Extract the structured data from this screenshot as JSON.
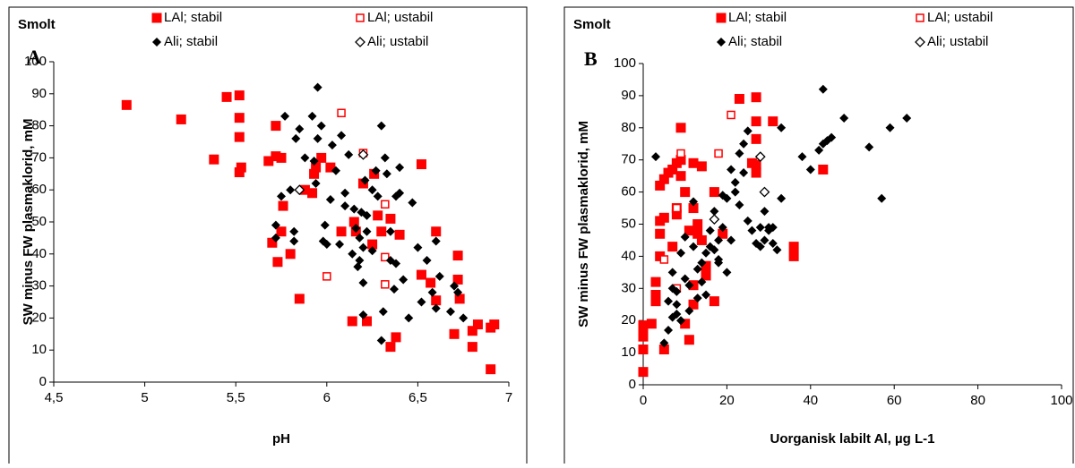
{
  "chart_data": [
    {
      "type": "scatter",
      "annotations": [
        "Smolt",
        "A"
      ],
      "xlabel": "pH",
      "ylabel": "SW minus FW plasmaklorid, mM",
      "xlim": [
        4.5,
        7
      ],
      "ylim": [
        0,
        100
      ],
      "xticks": [
        {
          "value": 4.5,
          "label": "4,5"
        },
        5,
        {
          "value": 5.5,
          "label": "5,5"
        },
        6,
        {
          "value": 6.5,
          "label": "6,5"
        },
        7
      ],
      "yticks": [
        0,
        10,
        20,
        30,
        40,
        50,
        60,
        70,
        80,
        90,
        100
      ],
      "series": [
        {
          "name": "LAl; stabil",
          "color": "#ff0000",
          "marker": "square",
          "x": [
            4.9,
            5.2,
            5.38,
            5.45,
            5.52,
            5.52,
            5.52,
            5.53,
            5.52,
            5.68,
            5.72,
            5.72,
            5.75,
            5.7,
            5.73,
            5.75,
            5.76,
            5.8,
            5.85,
            5.88,
            5.92,
            5.93,
            5.94,
            5.97,
            6.02,
            6.08,
            6.14,
            6.15,
            6.16,
            6.2,
            6.22,
            6.25,
            6.26,
            6.28,
            6.3,
            6.35,
            6.35,
            6.38,
            6.4,
            6.52,
            6.52,
            6.57,
            6.6,
            6.6,
            6.7,
            6.72,
            6.72,
            6.73,
            6.8,
            6.83,
            6.8,
            6.9,
            6.92,
            6.9
          ],
          "values": [
            86.5,
            82,
            69.5,
            89,
            89.5,
            82.5,
            76.5,
            67,
            65.5,
            69,
            70.5,
            80,
            70,
            43.5,
            37.5,
            47,
            55,
            40,
            26,
            60,
            59,
            65,
            67,
            70,
            67,
            47,
            19,
            50,
            47,
            62,
            19,
            43,
            65,
            52,
            47,
            51,
            11,
            14,
            46,
            68,
            33.5,
            31,
            47,
            25.5,
            15,
            39.5,
            32,
            26,
            11,
            18,
            16,
            4,
            18,
            17
          ]
        },
        {
          "name": "LAl; ustabil",
          "color": "#ff0000",
          "marker": "square-open",
          "x": [
            6.08,
            6.0,
            6.32,
            6.32,
            6.32,
            6.2
          ],
          "values": [
            84,
            33,
            39,
            30.5,
            55.5,
            71.5
          ]
        },
        {
          "name": "Ali; stabil",
          "color": "#000000",
          "marker": "diamond",
          "x": [
            5.72,
            5.72,
            5.75,
            5.77,
            5.8,
            5.82,
            5.82,
            5.83,
            5.85,
            5.88,
            5.92,
            5.93,
            5.94,
            5.95,
            5.95,
            5.97,
            5.98,
            5.99,
            6.0,
            6.02,
            6.03,
            6.05,
            6.07,
            6.08,
            6.1,
            6.1,
            6.12,
            6.14,
            6.15,
            6.16,
            6.17,
            6.18,
            6.18,
            6.19,
            6.2,
            6.2,
            6.2,
            6.21,
            6.22,
            6.22,
            6.25,
            6.25,
            6.27,
            6.28,
            6.3,
            6.3,
            6.31,
            6.32,
            6.33,
            6.35,
            6.35,
            6.37,
            6.38,
            6.38,
            6.4,
            6.4,
            6.42,
            6.45,
            6.47,
            6.5,
            6.52,
            6.55,
            6.58,
            6.6,
            6.6,
            6.62,
            6.68,
            6.7,
            6.72,
            6.75
          ],
          "values": [
            49,
            45,
            58,
            83,
            60,
            47,
            44,
            76,
            79,
            70,
            83,
            69,
            62,
            92,
            76,
            80,
            44,
            49,
            43,
            57,
            74,
            66,
            43,
            77,
            59,
            55,
            71,
            40,
            54,
            48,
            36,
            38,
            45,
            53,
            31,
            42,
            21,
            63,
            52,
            47,
            60,
            41,
            66,
            58,
            80,
            13,
            22,
            70,
            65,
            47,
            38,
            29,
            58,
            37,
            59,
            67,
            32,
            20,
            56,
            42,
            25,
            38,
            28,
            44,
            23,
            33,
            22,
            30,
            28,
            20
          ]
        },
        {
          "name": "Ali; ustabil",
          "color": "#000000",
          "marker": "diamond-open",
          "x": [
            5.85,
            6.2
          ],
          "values": [
            60,
            71
          ]
        }
      ]
    },
    {
      "type": "scatter",
      "annotations": [
        "Smolt",
        "B"
      ],
      "xlabel": "Uorganisk labilt Al, µg L-1",
      "ylabel": "SW minus FW plasmaklorid, mM",
      "xlim": [
        0,
        100
      ],
      "ylim": [
        0,
        100
      ],
      "xticks": [
        0,
        20,
        40,
        60,
        80,
        100
      ],
      "yticks": [
        0,
        10,
        20,
        30,
        40,
        50,
        60,
        70,
        80,
        90,
        100
      ],
      "series": [
        {
          "name": "LAl; stabil",
          "color": "#ff0000",
          "marker": "square",
          "x": [
            0,
            0,
            0,
            0,
            0,
            2,
            3,
            3,
            3,
            4,
            4,
            4,
            4,
            5,
            5,
            5,
            6,
            7,
            7,
            8,
            8,
            8,
            9,
            9,
            9,
            10,
            10,
            11,
            11,
            12,
            12,
            12,
            12,
            13,
            13,
            14,
            14,
            15,
            15,
            17,
            17,
            19,
            23,
            27,
            27,
            27,
            27,
            27,
            26,
            31,
            36,
            36,
            43
          ],
          "values": [
            18.5,
            16,
            11,
            4,
            15,
            19,
            28,
            26,
            32,
            40,
            62,
            51,
            47,
            11,
            52,
            64,
            66,
            43,
            67,
            55,
            53,
            69,
            70,
            80,
            65,
            19,
            60,
            14,
            48,
            25,
            31,
            69,
            55,
            47,
            50,
            45,
            68,
            34,
            37,
            26,
            60,
            47,
            89,
            89.5,
            82,
            76.5,
            68.5,
            66,
            69,
            82,
            43,
            40,
            67
          ]
        },
        {
          "name": "LAl; ustabil",
          "color": "#ff0000",
          "marker": "square-open",
          "x": [
            5,
            8,
            8,
            9,
            18,
            21
          ],
          "values": [
            39,
            30,
            55,
            72,
            72,
            84
          ]
        },
        {
          "name": "Ali; stabil",
          "color": "#000000",
          "marker": "diamond",
          "x": [
            3,
            5,
            6,
            6,
            7,
            7,
            7,
            8,
            8,
            8,
            9,
            9,
            10,
            10,
            11,
            11,
            12,
            12,
            13,
            13,
            14,
            14,
            15,
            15,
            16,
            16,
            17,
            17,
            18,
            18,
            18,
            19,
            19,
            20,
            20,
            21,
            21,
            22,
            22,
            23,
            23,
            24,
            24,
            25,
            25,
            26,
            27,
            28,
            28,
            29,
            29,
            30,
            30,
            31,
            31,
            32,
            33,
            33,
            38,
            40,
            42,
            43,
            44,
            45,
            43,
            48,
            54,
            57,
            59,
            63
          ],
          "values": [
            71,
            13,
            17,
            26,
            30,
            21,
            35,
            22,
            25,
            29,
            20,
            41,
            33,
            46,
            23,
            31,
            43,
            57,
            27,
            36,
            38,
            32,
            28,
            41,
            43,
            48,
            42,
            54,
            39,
            45,
            38,
            59,
            49,
            58,
            35,
            67,
            45,
            60,
            63,
            72,
            56,
            75,
            66,
            79,
            51,
            48,
            44,
            43,
            49,
            54,
            45,
            48,
            49,
            44,
            49,
            42,
            58,
            80,
            71,
            67,
            73,
            75,
            76,
            77,
            92,
            83,
            74,
            58,
            80,
            83
          ]
        },
        {
          "name": "Ali; ustabil",
          "color": "#000000",
          "marker": "diamond-open",
          "x": [
            17,
            28,
            29
          ],
          "values": [
            51.5,
            71,
            60
          ]
        }
      ]
    }
  ]
}
